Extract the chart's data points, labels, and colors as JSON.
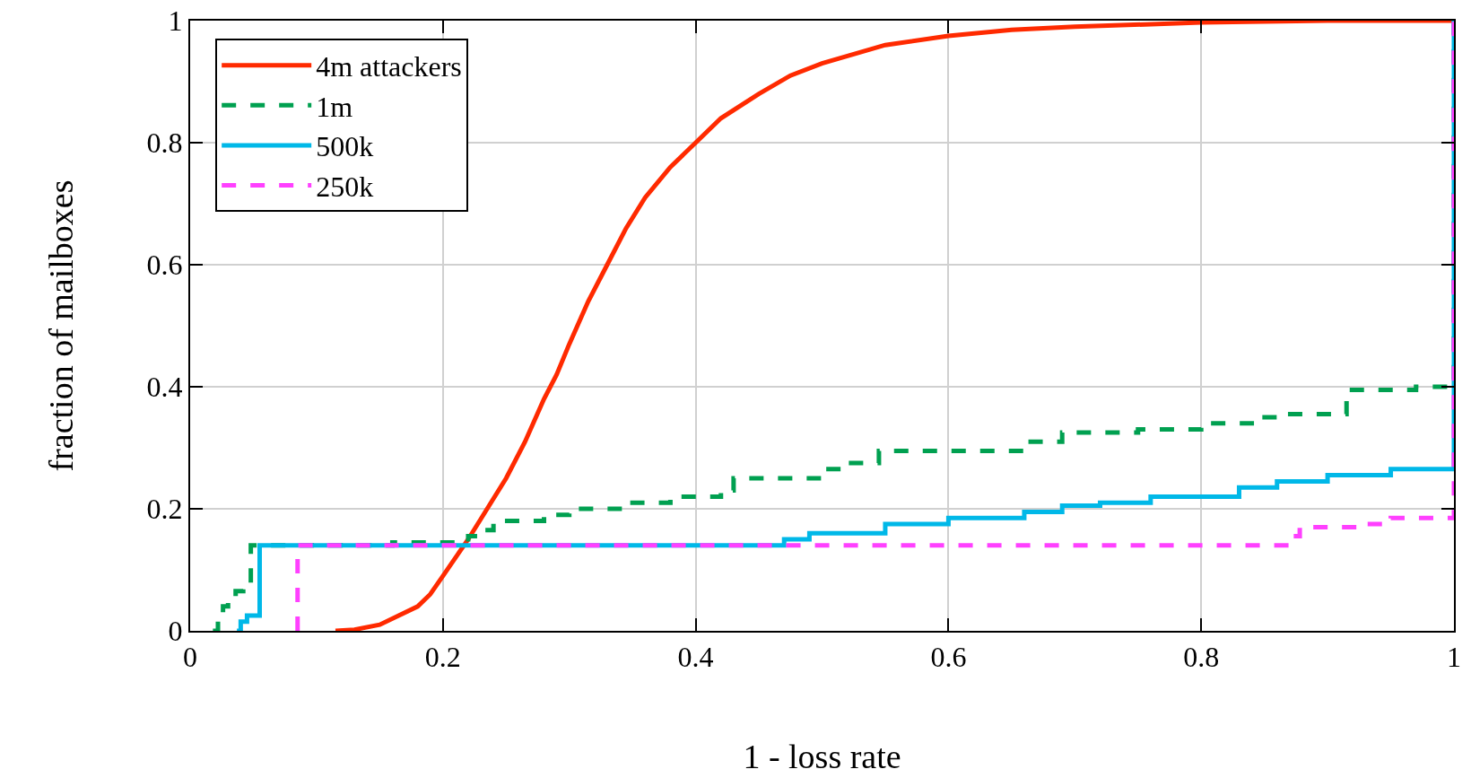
{
  "chart_data": {
    "type": "line",
    "xlabel": "1 - loss rate",
    "ylabel": "fraction of mailboxes",
    "xlim": [
      0,
      1
    ],
    "ylim": [
      0,
      1
    ],
    "xticks": [
      0,
      0.2,
      0.4,
      0.6,
      0.8,
      1
    ],
    "yticks": [
      0,
      0.2,
      0.4,
      0.6,
      0.8,
      1
    ],
    "grid": true,
    "legend": "top left",
    "marker": "none",
    "series": [
      {
        "name": "4m attackers",
        "color": "#ff2a00",
        "line_style": "solid",
        "x": [
          0.115,
          0.13,
          0.15,
          0.165,
          0.18,
          0.19,
          0.2,
          0.21,
          0.22,
          0.235,
          0.25,
          0.265,
          0.28,
          0.29,
          0.3,
          0.315,
          0.33,
          0.345,
          0.36,
          0.38,
          0.4,
          0.42,
          0.45,
          0.475,
          0.5,
          0.55,
          0.6,
          0.65,
          0.7,
          0.8,
          0.9,
          1,
          1
        ],
        "values": [
          0,
          0.002,
          0.01,
          0.025,
          0.04,
          0.06,
          0.09,
          0.12,
          0.15,
          0.2,
          0.25,
          0.31,
          0.38,
          0.42,
          0.47,
          0.54,
          0.6,
          0.66,
          0.71,
          0.76,
          0.8,
          0.84,
          0.88,
          0.91,
          0.93,
          0.96,
          0.975,
          0.985,
          0.99,
          0.997,
          1,
          1,
          1
        ]
      },
      {
        "name": "1m",
        "type": "step",
        "color": "#00a050",
        "line_style": "dashed",
        "x": [
          0.018,
          0.022,
          0.026,
          0.03,
          0.036,
          0.042,
          0.048,
          0.16,
          0.22,
          0.23,
          0.24,
          0.28,
          0.3,
          0.35,
          0.38,
          0.42,
          0.43,
          0.5,
          0.52,
          0.545,
          0.66,
          0.69,
          0.75,
          0.8,
          0.84,
          0.86,
          0.915,
          0.97,
          1,
          1
        ],
        "values": [
          0,
          0.02,
          0.04,
          0.055,
          0.065,
          0.075,
          0.14,
          0.145,
          0.155,
          0.165,
          0.18,
          0.19,
          0.2,
          0.21,
          0.22,
          0.23,
          0.25,
          0.265,
          0.275,
          0.295,
          0.31,
          0.325,
          0.33,
          0.34,
          0.35,
          0.355,
          0.395,
          0.4,
          0.405,
          1
        ]
      },
      {
        "name": "500k",
        "type": "step",
        "color": "#00b8e8",
        "line_style": "solid",
        "x": [
          0.037,
          0.04,
          0.045,
          0.055,
          0.47,
          0.49,
          0.55,
          0.6,
          0.66,
          0.69,
          0.72,
          0.76,
          0.83,
          0.86,
          0.9,
          0.95,
          1,
          1
        ],
        "values": [
          0,
          0.015,
          0.025,
          0.14,
          0.15,
          0.16,
          0.175,
          0.185,
          0.195,
          0.205,
          0.21,
          0.22,
          0.235,
          0.245,
          0.255,
          0.265,
          0.268,
          1
        ]
      },
      {
        "name": "250k",
        "type": "step",
        "color": "#ff40ff",
        "line_style": "dashed",
        "x": [
          0.085,
          0.085,
          0.872,
          0.878,
          0.93,
          0.95,
          1,
          1
        ],
        "values": [
          0,
          0.14,
          0.155,
          0.17,
          0.175,
          0.185,
          0.195,
          1
        ]
      }
    ]
  }
}
